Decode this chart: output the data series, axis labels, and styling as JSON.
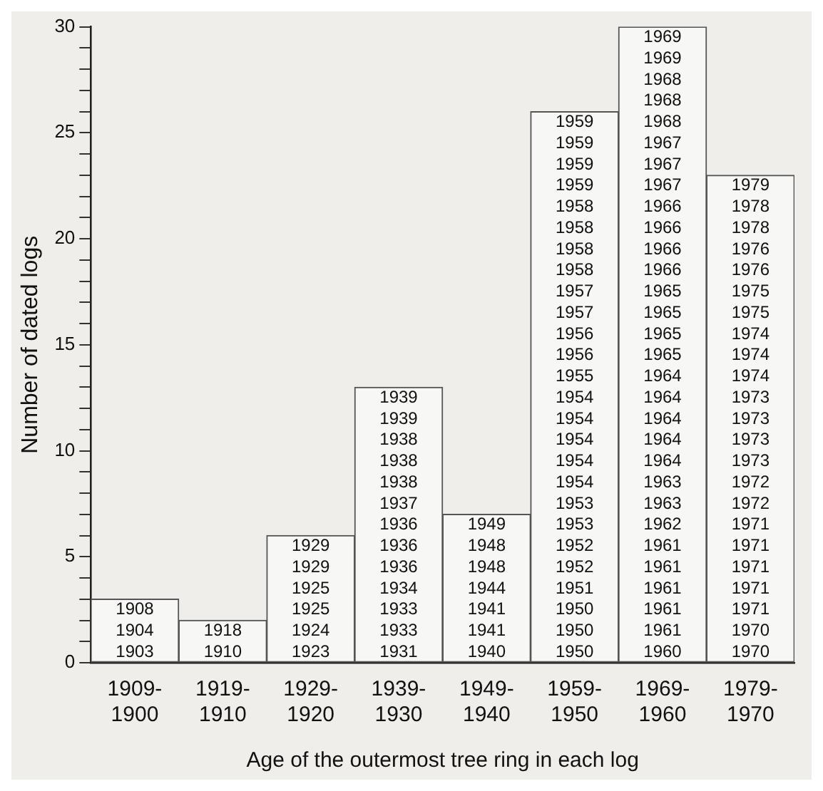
{
  "chart_data": {
    "type": "bar",
    "xlabel": "Age of the outermost tree ring in each log",
    "ylabel": "Number of dated logs",
    "categories": [
      "1909-1900",
      "1919-1910",
      "1929-1920",
      "1939-1930",
      "1949-1940",
      "1959-1950",
      "1969-1960",
      "1979-1970"
    ],
    "values": [
      3,
      2,
      6,
      13,
      7,
      26,
      30,
      23
    ],
    "color": "#f7f7f5",
    "annotations": [
      "1908",
      "1904",
      "1903",
      "1918",
      "1910",
      "1929",
      "1929",
      "1925",
      "1925",
      "1924",
      "1923",
      "1939",
      "1939",
      "1938",
      "1938",
      "1938",
      "1937",
      "1936",
      "1936",
      "1936",
      "1934",
      "1933",
      "1933",
      "1931",
      "1949",
      "1948",
      "1948",
      "1944",
      "1941",
      "1941",
      "1940",
      "1959",
      "1959",
      "1959",
      "1959",
      "1958",
      "1958",
      "1958",
      "1958",
      "1957",
      "1957",
      "1956",
      "1956",
      "1955",
      "1954",
      "1954",
      "1954",
      "1954",
      "1954",
      "1953",
      "1953",
      "1952",
      "1952",
      "1951",
      "1950",
      "1950",
      "1950",
      "1969",
      "1969",
      "1968",
      "1968",
      "1968",
      "1967",
      "1967",
      "1967",
      "1966",
      "1966",
      "1966",
      "1966",
      "1965",
      "1965",
      "1965",
      "1965",
      "1964",
      "1964",
      "1964",
      "1964",
      "1964",
      "1963",
      "1963",
      "1962",
      "1961",
      "1961",
      "1961",
      "1961",
      "1961",
      "1960",
      "1979",
      "1978",
      "1978",
      "1976",
      "1976",
      "1975",
      "1975",
      "1974",
      "1974",
      "1974",
      "1973",
      "1973",
      "1973",
      "1973",
      "1972",
      "1972",
      "1971",
      "1971",
      "1971",
      "1971",
      "1971",
      "1970",
      "1970"
    ],
    "ylim": [
      0,
      30
    ],
    "yticks": [
      0,
      {
        "value": 1,
        "label": null
      },
      {
        "value": 2,
        "label": null
      },
      {
        "value": 3,
        "label": null
      },
      {
        "value": 4,
        "label": null
      },
      5,
      {
        "value": 6,
        "label": null
      },
      {
        "value": 7,
        "label": null
      },
      {
        "value": 8,
        "label": null
      },
      {
        "value": 9,
        "label": null
      },
      10,
      {
        "value": 11,
        "label": null
      },
      {
        "value": 12,
        "label": null
      },
      {
        "value": 13,
        "label": null
      },
      {
        "value": 14,
        "label": null
      },
      15,
      {
        "value": 16,
        "label": null
      },
      {
        "value": 17,
        "label": null
      },
      {
        "value": 18,
        "label": null
      },
      {
        "value": 19,
        "label": null
      },
      20,
      {
        "value": 21,
        "label": null
      },
      {
        "value": 22,
        "label": null
      },
      {
        "value": 23,
        "label": null
      },
      {
        "value": 24,
        "label": null
      },
      25,
      {
        "value": 26,
        "label": null
      },
      {
        "value": 27,
        "label": null
      },
      {
        "value": 28,
        "label": null
      },
      {
        "value": 29,
        "label": null
      },
      30
    ],
    "grid": false,
    "legend": false
  }
}
